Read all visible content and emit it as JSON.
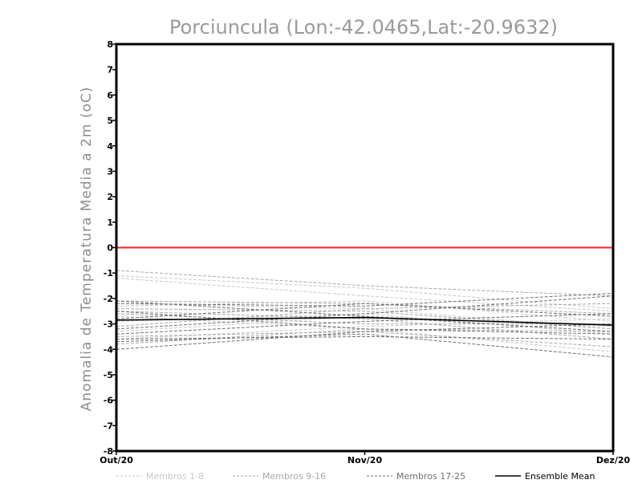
{
  "chart_data": {
    "type": "line",
    "title": "Porciuncula (Lon:-42.0465,Lat:-20.9632)",
    "ylabel": "Anomalia de Temperatura Media a 2m (oC)",
    "xlabel": "",
    "categories": [
      "Out/20",
      "Nov/20",
      "Dez/20"
    ],
    "ylim": [
      -8,
      8
    ],
    "yticks": [
      "-8",
      "-7",
      "-6",
      "-5",
      "-4",
      "-3",
      "-2",
      "-1",
      "0",
      "1",
      "2",
      "3",
      "4",
      "5",
      "6",
      "7",
      "8"
    ],
    "reference_line": {
      "y": 0,
      "color": "#ff2020"
    },
    "groups": [
      {
        "label": "Membros 1-8",
        "color": "#c8c8c8",
        "dashed": true
      },
      {
        "label": "Membros 9-16",
        "color": "#a8a8a8",
        "dashed": true
      },
      {
        "label": "Membros 17-25",
        "color": "#707070",
        "dashed": true
      },
      {
        "label": "Ensemble Mean",
        "color": "#000000",
        "dashed": false
      }
    ],
    "series": [
      {
        "group": 0,
        "values": [
          -1.1,
          -1.6,
          -2.4
        ]
      },
      {
        "group": 0,
        "values": [
          -1.2,
          -1.9,
          -2.5
        ]
      },
      {
        "group": 0,
        "values": [
          -2.9,
          -2.6,
          -3.4
        ]
      },
      {
        "group": 0,
        "values": [
          -2.3,
          -2.1,
          -2.9
        ]
      },
      {
        "group": 0,
        "values": [
          -3.6,
          -3.1,
          -2.8
        ]
      },
      {
        "group": 0,
        "values": [
          -2.7,
          -3.2,
          -4.1
        ]
      },
      {
        "group": 0,
        "values": [
          -3.3,
          -2.7,
          -3.1
        ]
      },
      {
        "group": 0,
        "values": [
          -2.2,
          -2.4,
          -3.2
        ]
      },
      {
        "group": 1,
        "values": [
          -0.9,
          -1.5,
          -1.9
        ]
      },
      {
        "group": 1,
        "values": [
          -2.1,
          -2.2,
          -2.6
        ]
      },
      {
        "group": 1,
        "values": [
          -3.8,
          -3.2,
          -3.3
        ]
      },
      {
        "group": 1,
        "values": [
          -2.5,
          -2.8,
          -3.6
        ]
      },
      {
        "group": 1,
        "values": [
          -3.1,
          -2.4,
          -2.2
        ]
      },
      {
        "group": 1,
        "values": [
          -2.6,
          -3.0,
          -3.0
        ]
      },
      {
        "group": 1,
        "values": [
          -3.5,
          -3.3,
          -3.9
        ]
      },
      {
        "group": 1,
        "values": [
          -2.4,
          -2.5,
          -3.2
        ]
      },
      {
        "group": 2,
        "values": [
          -2.2,
          -2.3,
          -1.8
        ]
      },
      {
        "group": 2,
        "values": [
          -3.7,
          -3.4,
          -4.3
        ]
      },
      {
        "group": 2,
        "values": [
          -4.0,
          -3.3,
          -3.0
        ]
      },
      {
        "group": 2,
        "values": [
          -2.1,
          -2.7,
          -3.3
        ]
      },
      {
        "group": 2,
        "values": [
          -3.4,
          -2.9,
          -2.6
        ]
      },
      {
        "group": 2,
        "values": [
          -2.8,
          -2.2,
          -2.7
        ]
      },
      {
        "group": 2,
        "values": [
          -3.6,
          -3.5,
          -3.6
        ]
      },
      {
        "group": 2,
        "values": [
          -2.5,
          -3.2,
          -3.4
        ]
      },
      {
        "group": 2,
        "values": [
          -3.2,
          -2.6,
          -1.9
        ]
      },
      {
        "group": 3,
        "values": [
          -2.85,
          -2.75,
          -3.05
        ]
      }
    ]
  }
}
